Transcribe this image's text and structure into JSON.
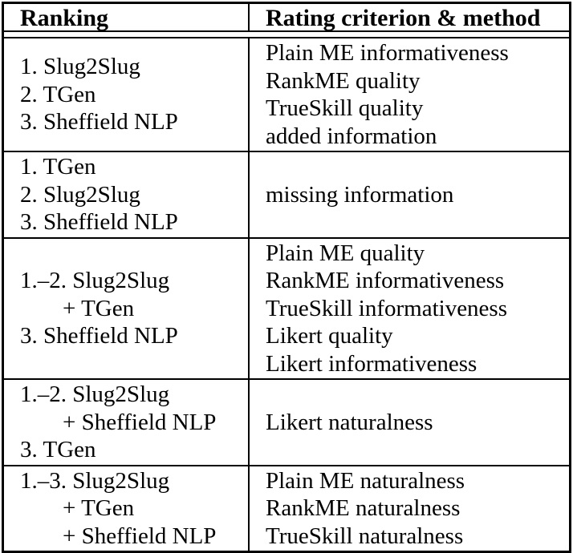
{
  "table": {
    "header": {
      "ranking": "Ranking",
      "criteria": "Rating criterion & method"
    },
    "rows": [
      {
        "ranking": [
          "1. Slug2Slug",
          "2. TGen",
          "3. Sheffield NLP"
        ],
        "criteria": [
          "Plain ME informativeness",
          "RankME quality",
          "TrueSkill quality",
          "added information"
        ]
      },
      {
        "ranking": [
          "1. TGen",
          "2. Slug2Slug",
          "3. Sheffield NLP"
        ],
        "criteria": [
          "missing information"
        ]
      },
      {
        "ranking": [
          "1.–2. Slug2Slug",
          "+ TGen",
          "3. Sheffield NLP"
        ],
        "criteria": [
          "Plain ME quality",
          "RankME informativeness",
          "TrueSkill informativeness",
          "Likert quality",
          "Likert informativeness"
        ]
      },
      {
        "ranking": [
          "1.–2. Slug2Slug",
          "+ Sheffield NLP",
          "3. TGen"
        ],
        "criteria": [
          "Likert naturalness"
        ]
      },
      {
        "ranking": [
          "1.–3. Slug2Slug",
          "+ TGen",
          "+ Sheffield NLP"
        ],
        "criteria": [
          "Plain ME naturalness",
          "RankME naturalness",
          "TrueSkill naturalness"
        ]
      }
    ],
    "colors": {
      "text": "#000000",
      "border": "#000000",
      "background": "#ffffff"
    }
  }
}
